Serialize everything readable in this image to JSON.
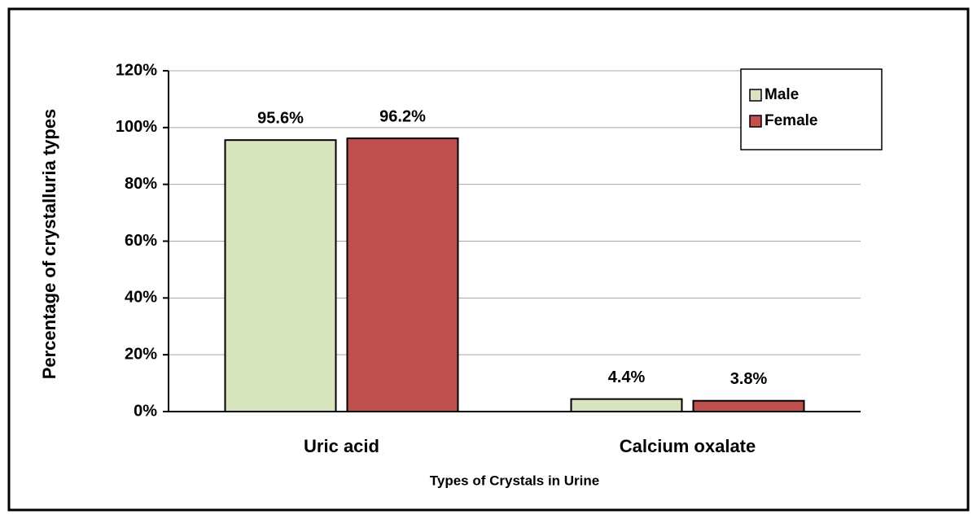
{
  "chart_data": {
    "type": "bar",
    "categories": [
      "Uric acid",
      "Calcium oxalate"
    ],
    "series": [
      {
        "name": "Male",
        "color": "#d7e4bd",
        "values": [
          95.6,
          4.4
        ],
        "value_labels": [
          "95.6%",
          "4.4%"
        ]
      },
      {
        "name": "Female",
        "color": "#c0504d",
        "values": [
          96.2,
          3.8
        ],
        "value_labels": [
          "96.2%",
          "3.8%"
        ]
      }
    ],
    "x_label": "Types of Crystals in Urine",
    "y_label": "Percentage of crystalluria types",
    "ylim": [
      0,
      120
    ],
    "yticks": [
      {
        "value": 0,
        "label": "0%"
      },
      {
        "value": 20,
        "label": "20%"
      },
      {
        "value": 40,
        "label": "40%"
      },
      {
        "value": 60,
        "label": "60%"
      },
      {
        "value": 80,
        "label": "80%"
      },
      {
        "value": 100,
        "label": "100%"
      },
      {
        "value": 120,
        "label": "120%"
      }
    ],
    "grid": true,
    "legend": "upper right"
  }
}
